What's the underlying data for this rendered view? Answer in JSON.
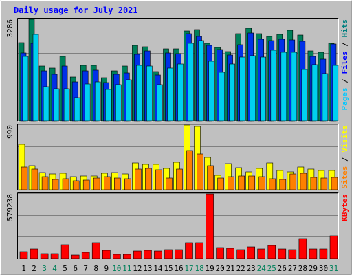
{
  "chart_data": {
    "type": "bar",
    "title": "Daily usage for July 2021",
    "categories": [
      "1",
      "2",
      "3",
      "4",
      "5",
      "6",
      "7",
      "8",
      "9",
      "10",
      "11",
      "12",
      "13",
      "14",
      "15",
      "16",
      "17",
      "18",
      "19",
      "20",
      "21",
      "22",
      "23",
      "24",
      "25",
      "26",
      "27",
      "28",
      "29",
      "30",
      "31"
    ],
    "weekend_days": [
      "3",
      "4",
      "10",
      "11",
      "17",
      "18",
      "24",
      "25",
      "31"
    ],
    "panels": [
      {
        "id": "pages-files-hits",
        "max_label": "3286",
        "ymax": 3286,
        "legend": [
          {
            "text": "Pages",
            "color": "#00c8ff"
          },
          {
            "text": "Files",
            "color": "#0000ff"
          },
          {
            "text": "Hits",
            "color": "#008080"
          }
        ],
        "series": [
          {
            "name": "Hits",
            "color": "#00805a",
            "values": [
              2540,
              3286,
              1780,
              1700,
              2080,
              1420,
              1800,
              1800,
              1390,
              1610,
              1770,
              2440,
              2400,
              1600,
              2330,
              2340,
              2910,
              2960,
              2520,
              2370,
              2240,
              2820,
              2990,
              2810,
              2730,
              2800,
              2930,
              2780,
              2270,
              2220,
              2510
            ]
          },
          {
            "name": "Files",
            "color": "#0030e8",
            "values": [
              2200,
              2520,
              1620,
              1520,
              1770,
              1260,
              1610,
              1640,
              1250,
              1500,
              1560,
              2150,
              2270,
              1480,
              2200,
              2180,
              2820,
              2730,
              2440,
              2300,
              2130,
              2470,
              2850,
              2640,
              2600,
              2650,
              2620,
              2580,
              2080,
              2000,
              2480
            ]
          },
          {
            "name": "Pages",
            "color": "#00d0f0",
            "values": [
              2080,
              2800,
              1120,
              1050,
              1050,
              760,
              1210,
              1260,
              1020,
              1180,
              1330,
              1800,
              1780,
              1180,
              1710,
              1850,
              2520,
              2600,
              1940,
              1580,
              1840,
              2070,
              2110,
              2060,
              2290,
              2210,
              2220,
              1670,
              1820,
              1540,
              1790
            ]
          }
        ]
      },
      {
        "id": "visits-sites",
        "max_label": "990",
        "ymax": 990,
        "legend": [
          {
            "text": "Sites",
            "color": "#ff8000"
          },
          {
            "text": "Visits",
            "color": "#ffff00"
          }
        ],
        "series": [
          {
            "name": "Visits",
            "color": "#ffff00",
            "values": [
              690,
              365,
              260,
              240,
              250,
              200,
              215,
              215,
              250,
              265,
              245,
              410,
              385,
              385,
              325,
              420,
              990,
              970,
              490,
              225,
              400,
              340,
              270,
              325,
              410,
              290,
              275,
              345,
              320,
              300,
              290
            ]
          },
          {
            "name": "Sites",
            "color": "#ff8000",
            "values": [
              350,
              315,
              200,
              160,
              170,
              140,
              145,
              175,
              200,
              175,
              170,
              320,
              330,
              305,
              175,
              320,
              600,
              550,
              370,
              175,
              205,
              210,
              215,
              200,
              165,
              155,
              240,
              250,
              185,
              180,
              190
            ]
          }
        ]
      },
      {
        "id": "kbytes",
        "max_label": "579238",
        "ymax": 579238,
        "legend": [
          {
            "text": "KBytes",
            "color": "#ff0000"
          }
        ],
        "series": [
          {
            "name": "KBytes",
            "color": "#ff0000",
            "values": [
              64000,
              89000,
              46000,
              43000,
              125000,
              33000,
              55000,
              143000,
              74000,
              38000,
              38000,
              70000,
              72000,
              70000,
              82000,
              80000,
              142000,
              143000,
              579238,
              98000,
              93000,
              80000,
              107000,
              85000,
              119000,
              88000,
              78000,
              178000,
              84000,
              85000,
              205000
            ]
          }
        ]
      }
    ]
  }
}
